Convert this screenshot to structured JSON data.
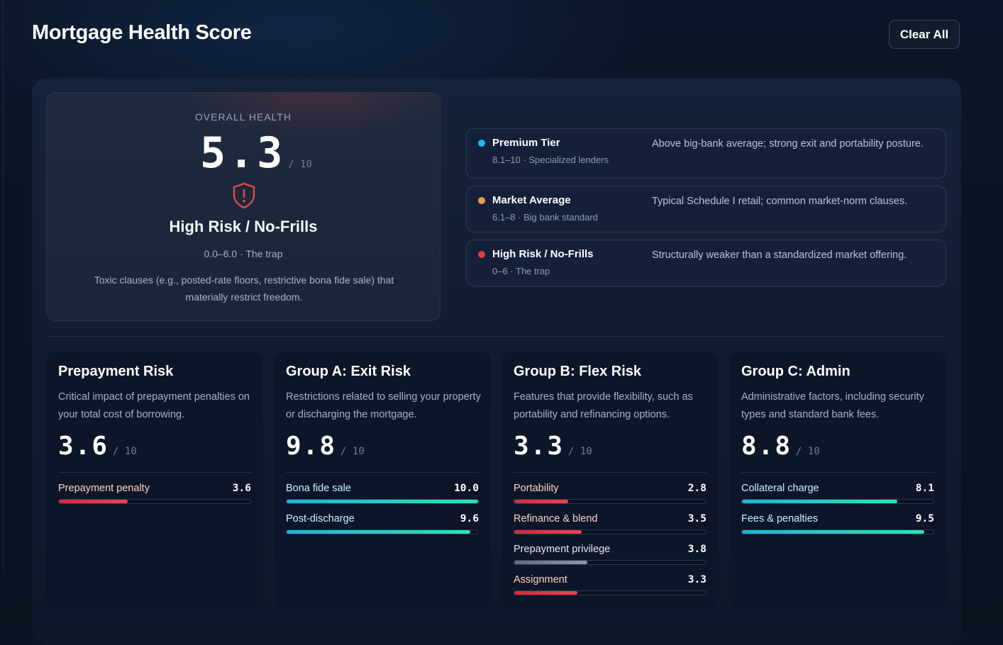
{
  "header": {
    "title": "Mortgage Health Score",
    "clear_label": "Clear All"
  },
  "overall": {
    "label": "OVERALL HEALTH",
    "score": "5.3",
    "max": "/ 10",
    "tier": "High Risk / No-Frills",
    "range": "0.0–6.0 · The trap",
    "description": "Toxic clauses (e.g., posted-rate floors, restrictive bona fide sale) that materially restrict freedom.",
    "icon": "shield-alert-icon"
  },
  "tiers": [
    {
      "name": "Premium Tier",
      "sub": "8.1–10 · Specialized lenders",
      "description": "Above big-bank average; strong exit and portability posture.",
      "color": "#1fb6f0"
    },
    {
      "name": "Market Average",
      "sub": "6.1–8 · Big bank standard",
      "description": "Typical Schedule I retail; common market-norm clauses.",
      "color": "#e0a050"
    },
    {
      "name": "High Risk / No-Frills",
      "sub": "0–6 · The trap",
      "description": "Structurally weaker than a standardized market offering.",
      "color": "#e03a44"
    }
  ],
  "groups": [
    {
      "title": "Prepayment Risk",
      "description": "Critical impact of prepayment penalties on your total cost of borrowing.",
      "score": "3.6",
      "max": "/ 10",
      "metrics": [
        {
          "label": "Prepayment penalty",
          "value": "3.6",
          "fraction": 0.36,
          "tone": "red"
        }
      ]
    },
    {
      "title": "Group A: Exit Risk",
      "description": "Restrictions related to selling your property or discharging the mortgage.",
      "score": "9.8",
      "max": "/ 10",
      "metrics": [
        {
          "label": "Bona fide sale",
          "value": "10.0",
          "fraction": 1.0,
          "tone": "teal"
        },
        {
          "label": "Post-discharge",
          "value": "9.6",
          "fraction": 0.96,
          "tone": "teal"
        }
      ]
    },
    {
      "title": "Group B: Flex Risk",
      "description": "Features that provide flexibility, such as portability and refinancing options.",
      "score": "3.3",
      "max": "/ 10",
      "metrics": [
        {
          "label": "Portability",
          "value": "2.8",
          "fraction": 0.28,
          "tone": "red"
        },
        {
          "label": "Refinance & blend",
          "value": "3.5",
          "fraction": 0.35,
          "tone": "red"
        },
        {
          "label": "Prepayment privilege",
          "value": "3.8",
          "fraction": 0.38,
          "tone": "grey"
        },
        {
          "label": "Assignment",
          "value": "3.3",
          "fraction": 0.33,
          "tone": "red"
        }
      ]
    },
    {
      "title": "Group C: Admin",
      "description": "Administrative factors, including security types and standard bank fees.",
      "score": "8.8",
      "max": "/ 10",
      "metrics": [
        {
          "label": "Collateral charge",
          "value": "8.1",
          "fraction": 0.81,
          "tone": "teal"
        },
        {
          "label": "Fees & penalties",
          "value": "9.5",
          "fraction": 0.95,
          "tone": "teal"
        }
      ]
    }
  ]
}
